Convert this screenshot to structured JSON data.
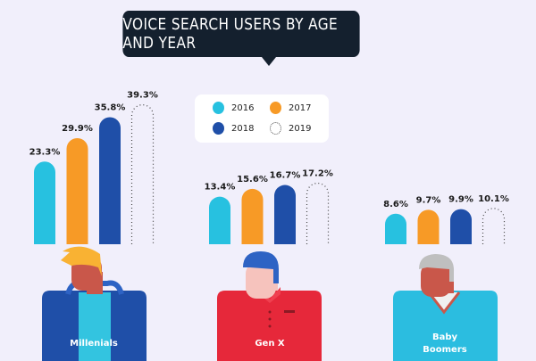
{
  "chart_data": {
    "type": "bar",
    "title": "VOICE SEARCH USERS BY AGE AND YEAR",
    "categories": [
      "Millenials",
      "Gen X",
      "Baby Boomers"
    ],
    "series": [
      {
        "name": "2016",
        "color": "#27c1e0",
        "values": [
          23.3,
          13.4,
          8.6
        ]
      },
      {
        "name": "2017",
        "color": "#f79a26",
        "values": [
          29.9,
          15.6,
          9.7
        ]
      },
      {
        "name": "2018",
        "color": "#1f4fa8",
        "values": [
          35.8,
          16.7,
          9.9
        ]
      },
      {
        "name": "2019",
        "color": "dotted",
        "values": [
          39.3,
          17.2,
          10.1
        ]
      }
    ],
    "labels": [
      [
        "23.3%",
        "29.9%",
        "35.8%",
        "39.3%"
      ],
      [
        "13.4%",
        "15.6%",
        "16.7%",
        "17.2%"
      ],
      [
        "8.6%",
        "9.7%",
        "9.9%",
        "10.1%"
      ]
    ],
    "group_labels": [
      "Millenials",
      "Gen X",
      "Baby",
      "Boomers"
    ],
    "legend_placement": "top-center",
    "ylabel": "",
    "xlabel": ""
  }
}
